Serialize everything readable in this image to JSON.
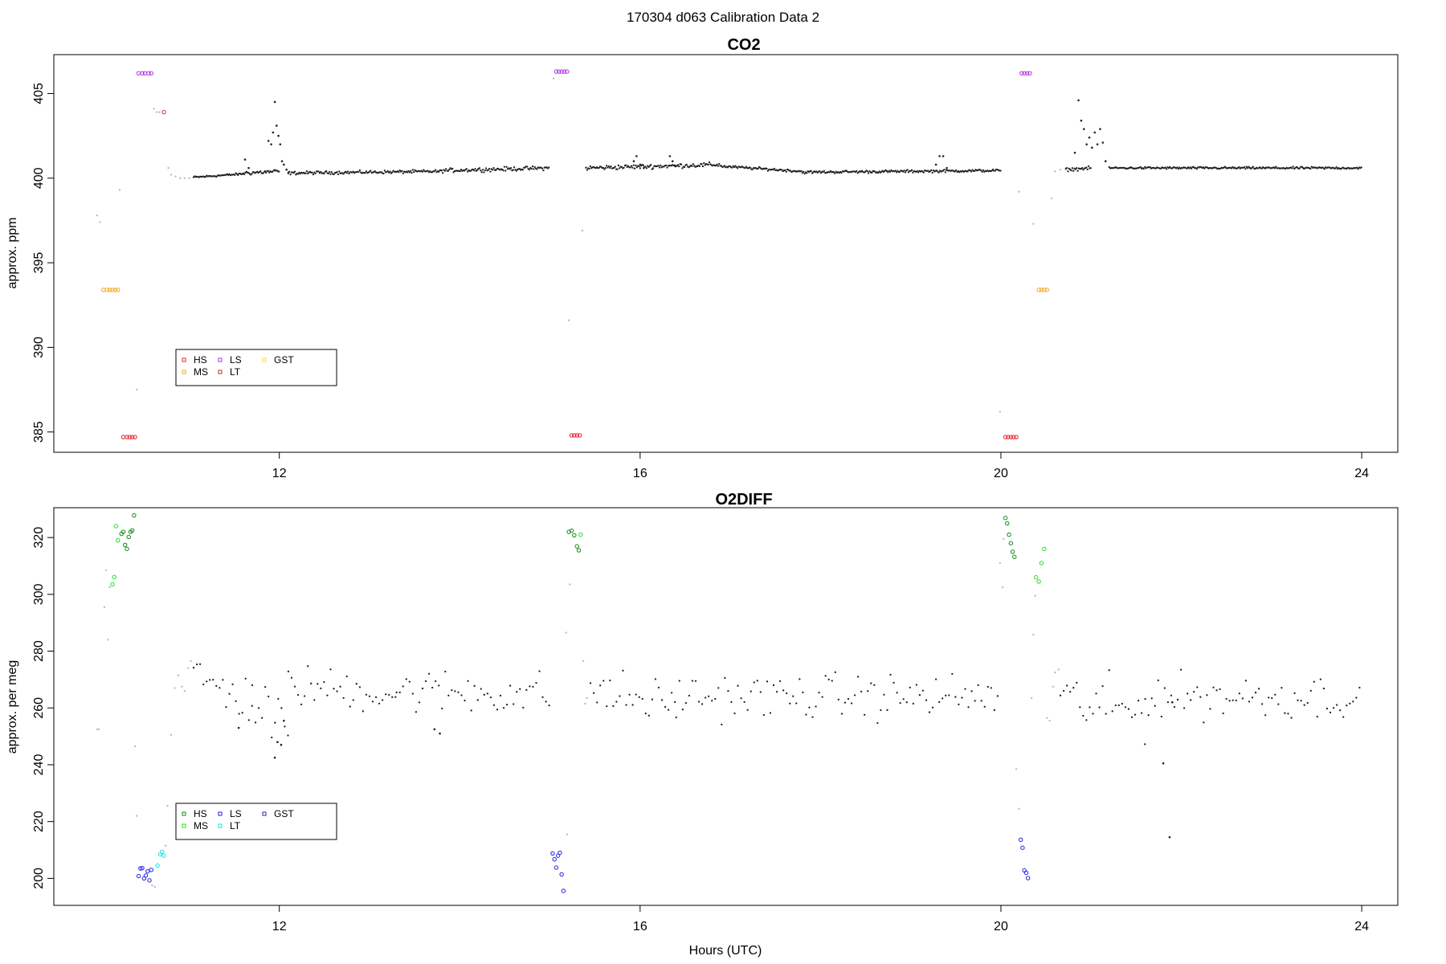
{
  "figure": {
    "title": "170304   d063   Calibration Data 2"
  },
  "chart_data": [
    {
      "type": "scatter",
      "title": "CO2",
      "xlabel": "",
      "ylabel": "approx. ppm",
      "xlim": [
        9.5,
        24.4
      ],
      "ylim": [
        383.8,
        407.3
      ],
      "xticks": [
        12,
        16,
        20,
        24
      ],
      "yticks": [
        385,
        390,
        395,
        400,
        405
      ],
      "grid": false,
      "legend": {
        "placement": "bottom-left",
        "entries": [
          {
            "label": "HS",
            "color": "#e8202a"
          },
          {
            "label": "MS",
            "color": "#f5a623"
          },
          {
            "label": "LS",
            "color": "#b030e0"
          },
          {
            "label": "LT",
            "color": "#b83030"
          },
          {
            "label": "GST",
            "color": "#f0e020"
          }
        ]
      },
      "colors": {
        "sample": "#222222",
        "transition": "#bbbbbb"
      },
      "calibration_series": [
        {
          "name": "MS",
          "color": "#f5a623",
          "x": [
            10.05,
            10.09,
            10.12,
            10.15,
            10.18,
            10.21
          ],
          "y": [
            393.4,
            393.4,
            393.4,
            393.4,
            393.4,
            393.4
          ]
        },
        {
          "name": "HS",
          "color": "#e8202a",
          "x": [
            10.27,
            10.31,
            10.34,
            10.37,
            10.4
          ],
          "y": [
            384.7,
            384.7,
            384.7,
            384.7,
            384.7
          ]
        },
        {
          "name": "LS",
          "color": "#b030e0",
          "x": [
            10.44,
            10.48,
            10.51,
            10.55,
            10.58
          ],
          "y": [
            406.2,
            406.2,
            406.2,
            406.2,
            406.2
          ]
        },
        {
          "name": "LT",
          "color": "#b83030",
          "x": [
            10.72
          ],
          "y": [
            403.9
          ]
        },
        {
          "name": "LS",
          "color": "#b030e0",
          "x": [
            15.07,
            15.1,
            15.13,
            15.16,
            15.19
          ],
          "y": [
            406.3,
            406.3,
            406.3,
            406.3,
            406.3
          ]
        },
        {
          "name": "HS",
          "color": "#e8202a",
          "x": [
            15.24,
            15.27,
            15.3,
            15.33
          ],
          "y": [
            384.8,
            384.8,
            384.8,
            384.8
          ]
        },
        {
          "name": "HS",
          "color": "#e8202a",
          "x": [
            20.05,
            20.08,
            20.11,
            20.14,
            20.17
          ],
          "y": [
            384.7,
            384.7,
            384.7,
            384.7,
            384.7
          ]
        },
        {
          "name": "LS",
          "color": "#b030e0",
          "x": [
            20.23,
            20.26,
            20.29,
            20.32
          ],
          "y": [
            406.2,
            406.2,
            406.2,
            406.2
          ]
        },
        {
          "name": "MS",
          "color": "#f5a623",
          "x": [
            20.42,
            20.45,
            20.48,
            20.51
          ],
          "y": [
            393.4,
            393.4,
            393.4,
            393.4
          ]
        }
      ],
      "transition_points": {
        "x": [
          9.98,
          10.01,
          10.23,
          10.42,
          10.61,
          10.64,
          10.67,
          10.77,
          10.8,
          10.85,
          10.9,
          10.95,
          11.0,
          15.04,
          15.21,
          15.36,
          15.4,
          19.99,
          20.2,
          20.36,
          20.56,
          20.6,
          20.66,
          20.72
        ],
        "y": [
          397.8,
          397.4,
          399.3,
          387.5,
          404.1,
          403.9,
          403.9,
          400.6,
          400.2,
          400.1,
          400.0,
          400.0,
          400.0,
          405.9,
          391.6,
          396.9,
          400.6,
          386.2,
          399.2,
          397.3,
          398.8,
          400.4,
          400.5,
          400.5
        ]
      },
      "sample_segments": [
        {
          "x_start": 11.05,
          "x_end": 11.6,
          "y_start": 400.05,
          "y_end": 400.25,
          "noise": 0.05
        },
        {
          "x_start": 11.6,
          "x_end": 12.0,
          "y_start": 400.3,
          "y_end": 400.4,
          "noise": 0.1
        },
        {
          "x_start": 12.1,
          "x_end": 13.8,
          "y_start": 400.3,
          "y_end": 400.4,
          "noise": 0.07
        },
        {
          "x_start": 13.8,
          "x_end": 15.0,
          "y_start": 400.45,
          "y_end": 400.6,
          "noise": 0.09
        },
        {
          "x_start": 15.4,
          "x_end": 16.9,
          "y_start": 400.6,
          "y_end": 400.8,
          "noise": 0.1
        },
        {
          "x_start": 16.9,
          "x_end": 17.8,
          "y_start": 400.7,
          "y_end": 400.4,
          "noise": 0.06
        },
        {
          "x_start": 17.8,
          "x_end": 20.0,
          "y_start": 400.35,
          "y_end": 400.45,
          "noise": 0.06
        },
        {
          "x_start": 20.72,
          "x_end": 21.0,
          "y_start": 400.5,
          "y_end": 400.6,
          "noise": 0.07
        },
        {
          "x_start": 21.2,
          "x_end": 24.0,
          "y_start": 400.6,
          "y_end": 400.6,
          "noise": 0.05
        }
      ],
      "sample_spikes": {
        "x": [
          11.62,
          11.66,
          11.88,
          11.91,
          11.93,
          11.95,
          11.97,
          11.99,
          12.01,
          12.03,
          12.05,
          12.08,
          12.1,
          15.93,
          15.96,
          16.0,
          16.04,
          16.33,
          16.36,
          16.39,
          19.28,
          19.32,
          19.36,
          19.4,
          20.82,
          20.86,
          20.89,
          20.92,
          20.95,
          20.98,
          21.01,
          21.04,
          21.07,
          21.1,
          21.13,
          21.16
        ],
        "y": [
          401.1,
          400.6,
          402.2,
          402.0,
          402.7,
          404.5,
          403.1,
          402.5,
          402.0,
          401.0,
          400.8,
          400.5,
          400.3,
          401.0,
          401.3,
          400.8,
          400.6,
          401.3,
          401.0,
          400.7,
          400.8,
          401.3,
          401.3,
          400.6,
          401.5,
          404.6,
          403.4,
          402.9,
          402.0,
          402.4,
          401.8,
          402.7,
          402.0,
          402.9,
          402.1,
          401.0
        ]
      }
    },
    {
      "type": "scatter",
      "title": "O2DIFF",
      "xlabel": "Hours (UTC)",
      "ylabel": "approx. per meg",
      "xlim": [
        9.5,
        24.4
      ],
      "ylim": [
        190.5,
        330.5
      ],
      "xticks": [
        12,
        16,
        20,
        24
      ],
      "yticks": [
        200,
        220,
        240,
        260,
        280,
        300,
        320
      ],
      "grid": false,
      "legend": {
        "placement": "bottom-left",
        "entries": [
          {
            "label": "HS",
            "color": "#108a10"
          },
          {
            "label": "MS",
            "color": "#20e020"
          },
          {
            "label": "LS",
            "color": "#2020e8"
          },
          {
            "label": "LT",
            "color": "#10e0e8"
          },
          {
            "label": "GST",
            "color": "#2a2aa0"
          }
        ]
      },
      "colors": {
        "sample": "#222222",
        "transition": "#bbbbbb"
      },
      "calibration_series": [
        {
          "name": "MS",
          "color": "#20e020",
          "x": [
            10.15,
            10.17,
            10.19,
            10.21
          ],
          "y": [
            303.5,
            306.1,
            324.0,
            319.0
          ]
        },
        {
          "name": "HS",
          "color": "#108a10",
          "x": [
            10.25,
            10.27,
            10.29,
            10.31,
            10.33,
            10.35,
            10.37,
            10.39
          ],
          "y": [
            321.3,
            322.0,
            317.4,
            316.0,
            320.2,
            322.0,
            322.5,
            327.8
          ]
        },
        {
          "name": "LS",
          "color": "#2020e8",
          "x": [
            10.44,
            10.46,
            10.48,
            10.5,
            10.52,
            10.54,
            10.56,
            10.58
          ],
          "y": [
            200.8,
            203.5,
            203.6,
            200.0,
            201.0,
            202.5,
            199.3,
            203.0
          ]
        },
        {
          "name": "LT",
          "color": "#10e0e8",
          "x": [
            10.65,
            10.68,
            10.7,
            10.72
          ],
          "y": [
            204.5,
            208.5,
            209.4,
            208.0
          ]
        },
        {
          "name": "LS",
          "color": "#2020e8",
          "x": [
            15.03,
            15.05,
            15.07,
            15.09,
            15.11,
            15.13,
            15.15
          ],
          "y": [
            208.8,
            206.7,
            203.8,
            208.0,
            209.0,
            201.4,
            195.6
          ]
        },
        {
          "name": "HS",
          "color": "#108a10",
          "x": [
            15.21,
            15.24,
            15.27,
            15.3,
            15.32
          ],
          "y": [
            322.0,
            322.4,
            320.8,
            316.9,
            315.5
          ]
        },
        {
          "name": "MS",
          "color": "#20e020",
          "x": [
            15.34
          ],
          "y": [
            321.0
          ]
        },
        {
          "name": "HS",
          "color": "#108a10",
          "x": [
            20.05,
            20.07,
            20.09,
            20.11,
            20.13,
            20.15
          ],
          "y": [
            326.9,
            325.0,
            321.0,
            318.0,
            315.0,
            313.2
          ]
        },
        {
          "name": "LS",
          "color": "#2020e8",
          "x": [
            20.22,
            20.24,
            20.26,
            20.28,
            20.3
          ],
          "y": [
            213.6,
            210.8,
            202.8,
            202.0,
            200.1
          ]
        },
        {
          "name": "MS",
          "color": "#20e020",
          "x": [
            20.39,
            20.42,
            20.45,
            20.48
          ],
          "y": [
            306.0,
            304.5,
            311.0,
            316.0
          ]
        }
      ],
      "transition_points": {
        "x": [
          9.98,
          10.0,
          10.06,
          10.08,
          10.1,
          10.12,
          10.4,
          10.42,
          10.59,
          10.62,
          10.74,
          10.76,
          10.8,
          10.84,
          10.88,
          10.92,
          10.95,
          10.99,
          11.02,
          15.19,
          15.18,
          15.22,
          15.37,
          15.39,
          15.41,
          19.99,
          20.02,
          20.03,
          20.17,
          20.2,
          20.34,
          20.36,
          20.38,
          20.51,
          20.54,
          20.58,
          20.6,
          20.64
        ],
        "y": [
          252.5,
          252.5,
          295.5,
          308.5,
          284.0,
          302.5,
          246.5,
          222.0,
          197.5,
          197.0,
          211.5,
          225.5,
          250.5,
          267.0,
          271.5,
          267.5,
          266.0,
          274.0,
          276.5,
          215.5,
          286.5,
          303.5,
          276.5,
          261.5,
          263.5,
          311.0,
          302.5,
          319.5,
          238.5,
          224.5,
          263.5,
          285.8,
          299.5,
          256.5,
          255.5,
          267.5,
          272.5,
          273.5
        ]
      },
      "sample_segments": [
        {
          "x_start": 11.05,
          "x_end": 11.7,
          "y_start": 271.0,
          "y_end": 262.0,
          "noise": 6.5
        },
        {
          "x_start": 11.7,
          "x_end": 12.1,
          "y_start": 264.0,
          "y_end": 250.0,
          "noise": 9.0
        },
        {
          "x_start": 12.1,
          "x_end": 13.3,
          "y_start": 268.0,
          "y_end": 265.0,
          "noise": 5.5
        },
        {
          "x_start": 13.3,
          "x_end": 15.0,
          "y_start": 266.0,
          "y_end": 265.0,
          "noise": 6.0
        },
        {
          "x_start": 15.45,
          "x_end": 16.4,
          "y_start": 266.0,
          "y_end": 261.0,
          "noise": 6.5
        },
        {
          "x_start": 16.4,
          "x_end": 20.0,
          "y_start": 264.0,
          "y_end": 264.0,
          "noise": 6.0
        },
        {
          "x_start": 20.66,
          "x_end": 21.6,
          "y_start": 263.0,
          "y_end": 258.0,
          "noise": 8.0
        },
        {
          "x_start": 21.6,
          "x_end": 24.0,
          "y_start": 264.0,
          "y_end": 264.0,
          "noise": 6.0
        }
      ],
      "sample_spikes": {
        "x": [
          11.55,
          11.95,
          11.98,
          12.02,
          12.05,
          13.72,
          13.78,
          21.8,
          21.87,
          21.9
        ],
        "y": [
          253.0,
          242.5,
          248.0,
          247.0,
          255.5,
          252.5,
          251.0,
          240.5,
          214.5,
          262.0
        ]
      }
    }
  ]
}
